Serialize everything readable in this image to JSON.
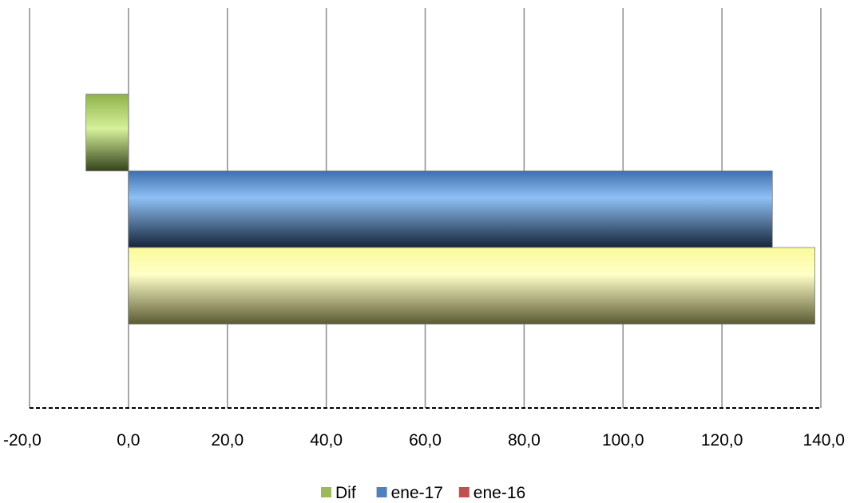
{
  "chart_data": {
    "type": "bar",
    "orientation": "horizontal",
    "title": "",
    "xlabel": "",
    "ylabel": "",
    "xlim": [
      -20,
      140
    ],
    "x_ticks": [
      "-20,0",
      "0,0",
      "20,0",
      "40,0",
      "60,0",
      "80,0",
      "100,0",
      "120,0",
      "140,0"
    ],
    "grid": "vertical",
    "legend_position": "bottom",
    "series": [
      {
        "name": "Dif",
        "value": -8.6,
        "color": "#9bbb59",
        "bar_color": "#9bbb59"
      },
      {
        "name": "ene-17",
        "value": 130.2,
        "color": "#4f81bd",
        "bar_color": "#4f81bd"
      },
      {
        "name": "ene-16",
        "value": 138.8,
        "color": "#c0504d",
        "bar_color": "#f5f08a"
      }
    ]
  }
}
